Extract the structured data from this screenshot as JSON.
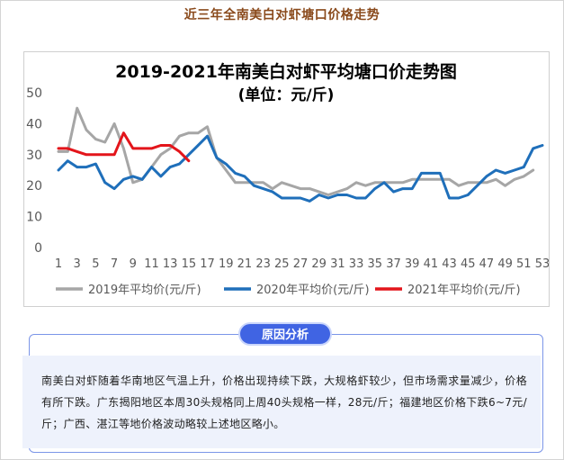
{
  "header": {
    "title": "近三年全南美白对虾塘口价格走势"
  },
  "chart_data": {
    "type": "line",
    "title": "2019-2021年南美白对虾平均塘口价走势图",
    "subtitle": "(单位：元/斤)",
    "xlabel": "",
    "ylabel": "",
    "ylim": [
      0,
      50
    ],
    "yticks": [
      0,
      10,
      20,
      30,
      40,
      50
    ],
    "xlim": [
      1,
      53
    ],
    "xticks": [
      1,
      3,
      5,
      7,
      9,
      11,
      13,
      15,
      17,
      19,
      21,
      23,
      25,
      27,
      29,
      31,
      33,
      35,
      37,
      39,
      41,
      43,
      45,
      47,
      49,
      51,
      53
    ],
    "grid": false,
    "legend_position": "bottom",
    "series": [
      {
        "name": "2019年平均价(元/斤)",
        "color": "#a6a6a6",
        "x": [
          1,
          2,
          3,
          4,
          5,
          6,
          7,
          8,
          9,
          10,
          11,
          12,
          13,
          14,
          15,
          16,
          17,
          18,
          20,
          21,
          22,
          23,
          24,
          25,
          26,
          27,
          28,
          29,
          30,
          31,
          32,
          33,
          34,
          35,
          36,
          37,
          38,
          39,
          40,
          41,
          42,
          43,
          44,
          45,
          46,
          47,
          48,
          49,
          50,
          51,
          52
        ],
        "values": [
          31,
          31,
          45,
          38,
          35,
          34,
          40,
          32,
          21,
          22,
          26,
          30,
          32,
          36,
          37,
          37,
          39,
          29,
          21,
          21,
          21,
          21,
          19,
          21,
          20,
          19,
          19,
          18,
          17,
          18,
          19,
          21,
          20,
          21,
          21,
          21,
          21,
          22,
          22,
          22,
          22,
          22,
          20,
          21,
          21,
          21,
          22,
          20,
          22,
          23,
          25
        ]
      },
      {
        "name": "2020年平均价(元/斤)",
        "color": "#1f6fba",
        "x": [
          1,
          2,
          3,
          4,
          5,
          6,
          7,
          8,
          9,
          10,
          11,
          12,
          13,
          14,
          15,
          16,
          17,
          18,
          19,
          20,
          21,
          22,
          23,
          24,
          25,
          26,
          27,
          28,
          29,
          30,
          31,
          32,
          33,
          34,
          35,
          36,
          37,
          38,
          39,
          40,
          41,
          42,
          43,
          44,
          45,
          46,
          47,
          48,
          49,
          50,
          51,
          52,
          53
        ],
        "values": [
          25,
          28,
          26,
          26,
          27,
          21,
          19,
          22,
          23,
          22,
          26,
          23,
          26,
          27,
          30,
          33,
          36,
          29,
          27,
          24,
          23,
          20,
          19,
          18,
          16,
          16,
          16,
          15,
          17,
          16,
          17,
          17,
          16,
          16,
          19,
          21,
          18,
          19,
          19,
          24,
          24,
          24,
          16,
          16,
          17,
          20,
          23,
          25,
          24,
          25,
          26,
          32,
          33
        ]
      },
      {
        "name": "2021年平均价(元/斤)",
        "color": "#e3151b",
        "x": [
          1,
          2,
          3,
          4,
          5,
          6,
          7,
          8,
          9,
          10,
          11,
          12,
          13,
          14,
          15
        ],
        "values": [
          32,
          32,
          31,
          30,
          30,
          30,
          30,
          37,
          32,
          32,
          32,
          33,
          33,
          31,
          28
        ]
      }
    ]
  },
  "analysis": {
    "badge": "原因分析",
    "text": "南美白对虾随着华南地区气温上升，价格出现持续下跌，大规格虾较少，但市场需求量减少，价格有所下跌。广东揭阳地区本周30头规格同上周40头规格一样，28元/斤；福建地区价格下跌6~7元/斤；广西、湛江等地价格波动略较上述地区略小。"
  }
}
